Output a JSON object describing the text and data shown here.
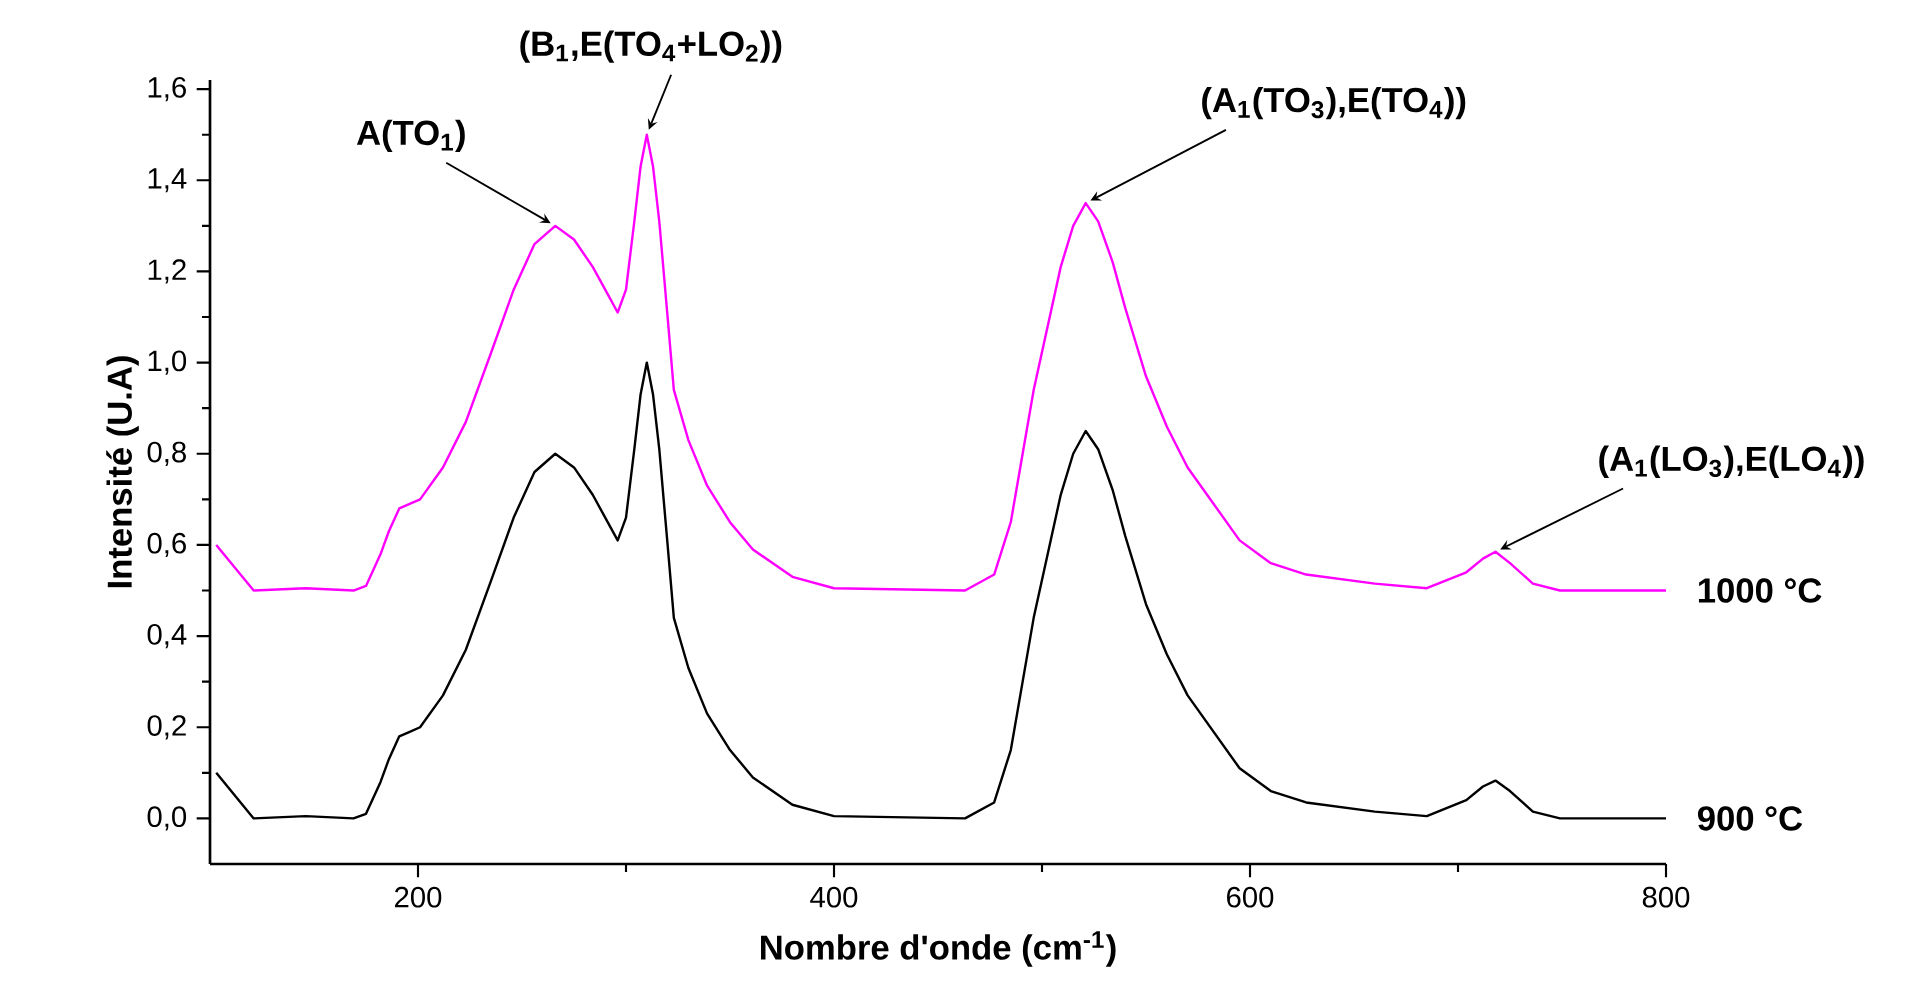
{
  "chart_data": {
    "type": "line",
    "xlabel": "Nombre d'onde (cm$^{-1}$)",
    "ylabel": "Intensité (U.A)",
    "xlim": [
      100,
      800
    ],
    "ylim": [
      -0.1,
      1.62
    ],
    "xticks": [
      200,
      400,
      600,
      800
    ],
    "yticks": [
      {
        "value": 0,
        "label": "0,0"
      },
      {
        "value": 0.2,
        "label": "0,2"
      },
      {
        "value": 0.4,
        "label": "0,4"
      },
      {
        "value": 0.6,
        "label": "0,6"
      },
      {
        "value": 0.8,
        "label": "0,8"
      },
      {
        "value": 1.0,
        "label": "1,0"
      },
      {
        "value": 1.2,
        "label": "1,2"
      },
      {
        "value": 1.4,
        "label": "1,4"
      },
      {
        "value": 1.6,
        "label": "1,6"
      }
    ],
    "grid": false,
    "legend": false,
    "marker": "none",
    "line_style": "solid",
    "x": [
      103,
      121,
      146,
      169,
      175,
      182,
      186,
      191,
      196,
      201,
      212,
      223,
      235,
      246,
      256,
      266,
      275,
      284,
      290,
      296,
      300,
      304,
      307,
      310,
      313,
      316,
      320,
      323,
      330,
      339,
      350,
      361,
      380,
      400,
      463,
      477,
      485,
      496,
      509,
      515,
      521,
      527,
      534,
      540,
      550,
      560,
      570,
      595,
      610,
      627,
      660,
      685,
      704,
      712,
      718,
      725,
      736,
      749,
      800
    ],
    "series": [
      {
        "name": "1000 °C",
        "color": "#ff00ff",
        "values": [
          0.6,
          0.5,
          0.505,
          0.5,
          0.51,
          0.58,
          0.63,
          0.68,
          0.69,
          0.7,
          0.77,
          0.87,
          1.02,
          1.16,
          1.26,
          1.3,
          1.27,
          1.21,
          1.16,
          1.11,
          1.16,
          1.31,
          1.43,
          1.5,
          1.43,
          1.31,
          1.1,
          0.94,
          0.83,
          0.73,
          0.65,
          0.59,
          0.53,
          0.505,
          0.5,
          0.535,
          0.65,
          0.94,
          1.21,
          1.3,
          1.35,
          1.31,
          1.22,
          1.12,
          0.97,
          0.86,
          0.77,
          0.61,
          0.56,
          0.535,
          0.515,
          0.505,
          0.54,
          0.57,
          0.585,
          0.56,
          0.515,
          0.5,
          0.5
        ]
      },
      {
        "name": "900 °C",
        "color": "#000000",
        "values": [
          0.1,
          0.0,
          0.005,
          0.0,
          0.01,
          0.08,
          0.13,
          0.18,
          0.19,
          0.2,
          0.27,
          0.37,
          0.52,
          0.66,
          0.76,
          0.8,
          0.77,
          0.71,
          0.66,
          0.61,
          0.66,
          0.81,
          0.93,
          1.0,
          0.93,
          0.81,
          0.6,
          0.44,
          0.33,
          0.23,
          0.15,
          0.09,
          0.03,
          0.005,
          0.0,
          0.035,
          0.15,
          0.44,
          0.71,
          0.8,
          0.85,
          0.81,
          0.72,
          0.62,
          0.47,
          0.36,
          0.27,
          0.11,
          0.06,
          0.035,
          0.015,
          0.005,
          0.04,
          0.07,
          0.083,
          0.06,
          0.015,
          0.0,
          0.0
        ]
      }
    ],
    "annotations": [
      {
        "text": "A(TO$_{1}$)",
        "x": 266,
        "y": 1.3
      },
      {
        "text": "(B$_{1}$,E(TO$_{4}$+LO$_{2}$))",
        "x": 310,
        "y": 1.5
      },
      {
        "text": "(A$_{1}$(TO$_{3}$),E(TO$_{4}$))",
        "x": 521,
        "y": 1.35
      },
      {
        "text": "(A$_{1}$(LO$_{3}$),E(LO$_{4}$))",
        "x": 718,
        "y": 0.585
      }
    ]
  }
}
